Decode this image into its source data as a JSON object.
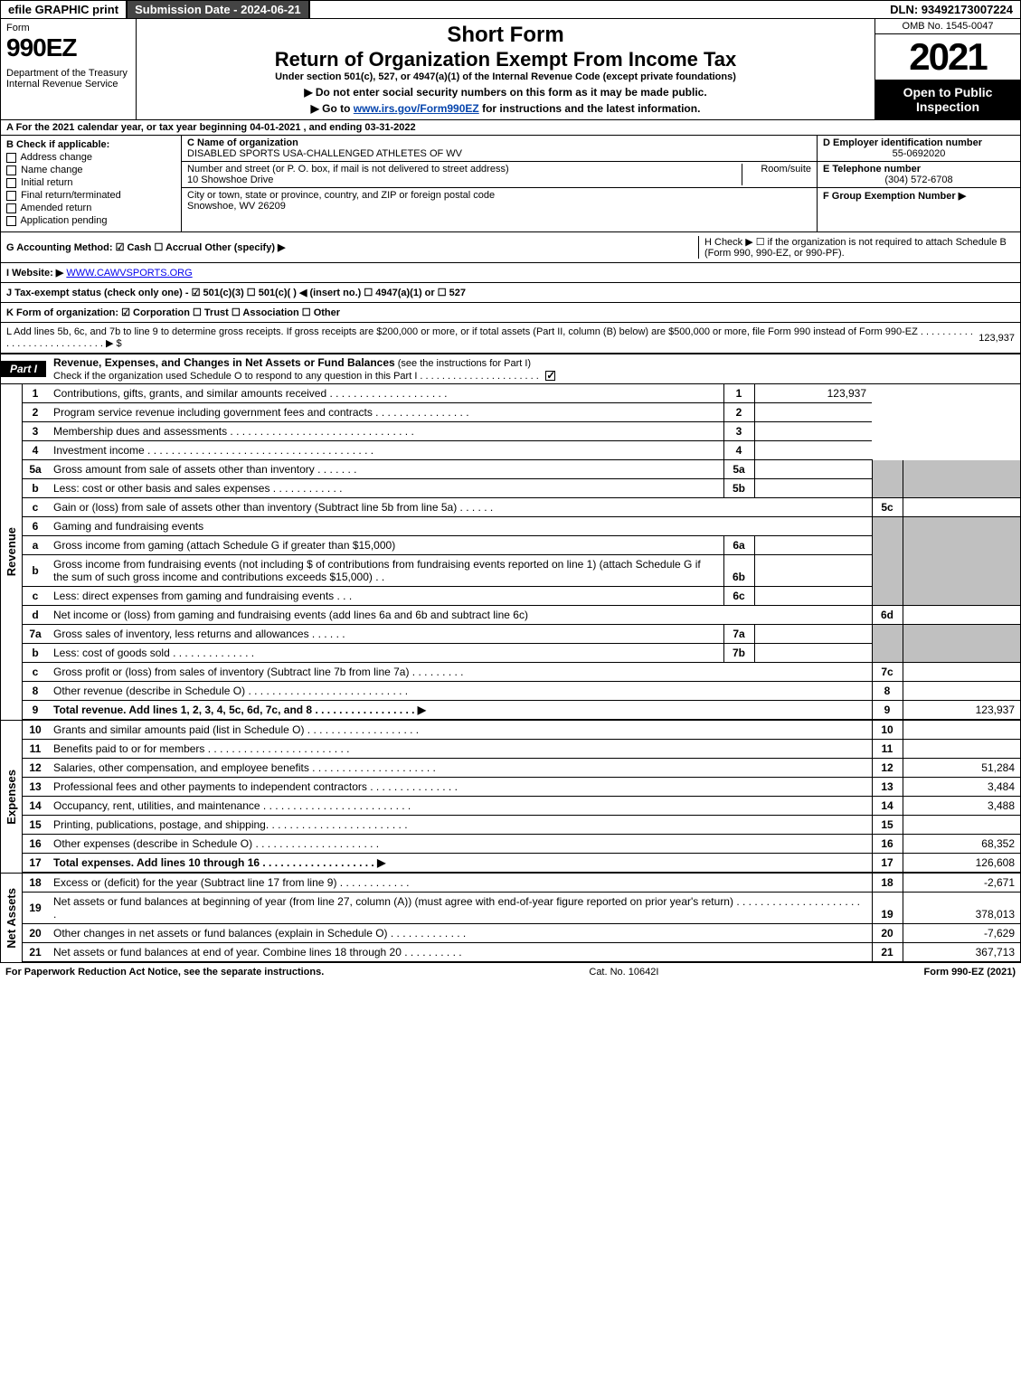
{
  "topbar": {
    "efile": "efile GRAPHIC print",
    "subdate": "Submission Date - 2024-06-21",
    "dln": "DLN: 93492173007224"
  },
  "header": {
    "form_label": "Form",
    "form_num": "990EZ",
    "dept": "Department of the Treasury\nInternal Revenue Service",
    "short": "Short Form",
    "return": "Return of Organization Exempt From Income Tax",
    "under": "Under section 501(c), 527, or 4947(a)(1) of the Internal Revenue Code (except private foundations)",
    "note": "▶ Do not enter social security numbers on this form as it may be made public.",
    "goto_pre": "▶ Go to ",
    "goto_link": "www.irs.gov/Form990EZ",
    "goto_post": " for instructions and the latest information.",
    "omb": "OMB No. 1545-0047",
    "year": "2021",
    "open": "Open to Public Inspection"
  },
  "A": "A  For the 2021 calendar year, or tax year beginning 04-01-2021 , and ending 03-31-2022",
  "B": {
    "head": "B  Check if applicable:",
    "items": [
      "Address change",
      "Name change",
      "Initial return",
      "Final return/terminated",
      "Amended return",
      "Application pending"
    ]
  },
  "C": {
    "name_lbl": "C Name of organization",
    "name": "DISABLED SPORTS USA-CHALLENGED ATHLETES OF WV",
    "street_lbl": "Number and street (or P. O. box, if mail is not delivered to street address)",
    "street": "10 Showshoe Drive",
    "room_lbl": "Room/suite",
    "city_lbl": "City or town, state or province, country, and ZIP or foreign postal code",
    "city": "Snowshoe, WV  26209"
  },
  "D": {
    "ein_lbl": "D Employer identification number",
    "ein": "55-0692020",
    "tel_lbl": "E Telephone number",
    "tel": "(304) 572-6708",
    "grp_lbl": "F Group Exemption Number  ▶"
  },
  "G": "G Accounting Method:   ☑ Cash   ☐ Accrual   Other (specify) ▶",
  "H": "H   Check ▶  ☐  if the organization is not required to attach Schedule B (Form 990, 990-EZ, or 990-PF).",
  "I": {
    "lbl": "I Website: ▶",
    "val": "WWW.CAWVSPORTS.ORG"
  },
  "J": "J Tax-exempt status (check only one) -  ☑ 501(c)(3)  ☐ 501(c)(  ) ◀ (insert no.)  ☐ 4947(a)(1) or  ☐ 527",
  "K": "K Form of organization:   ☑ Corporation   ☐ Trust   ☐ Association   ☐ Other",
  "L": {
    "text": "L Add lines 5b, 6c, and 7b to line 9 to determine gross receipts. If gross receipts are $200,000 or more, or if total assets (Part II, column (B) below) are $500,000 or more, file Form 990 instead of Form 990-EZ  .  .  .  .  .  .  .  .  .  .  .  .  .  .  .  .  .  .  .  .  .  .  .  .  .  .  .  .  ▶ $",
    "amt": "123,937"
  },
  "partI": {
    "tab": "Part I",
    "title": "Revenue, Expenses, and Changes in Net Assets or Fund Balances",
    "sub": " (see the instructions for Part I)",
    "check": "Check if the organization used Schedule O to respond to any question in this Part I  .  .  .  .  .  .  .  .  .  .  .  .  .  .  .  .  .  .  .  .  .  ."
  },
  "revenue_label": "Revenue",
  "expenses_label": "Expenses",
  "netassets_label": "Net Assets",
  "lines": {
    "l1": {
      "n": "1",
      "d": "Contributions, gifts, grants, and similar amounts received  .  .  .  .  .  .  .  .  .  .  .  .  .  .  .  .  .  .  .  .",
      "box": "1",
      "amt": "123,937"
    },
    "l2": {
      "n": "2",
      "d": "Program service revenue including government fees and contracts  .  .  .  .  .  .  .  .  .  .  .  .  .  .  .  .",
      "box": "2",
      "amt": ""
    },
    "l3": {
      "n": "3",
      "d": "Membership dues and assessments  .  .  .  .  .  .  .  .  .  .  .  .  .  .  .  .  .  .  .  .  .  .  .  .  .  .  .  .  .  .  .",
      "box": "3",
      "amt": ""
    },
    "l4": {
      "n": "4",
      "d": "Investment income  .  .  .  .  .  .  .  .  .  .  .  .  .  .  .  .  .  .  .  .  .  .  .  .  .  .  .  .  .  .  .  .  .  .  .  .  .  .",
      "box": "4",
      "amt": ""
    },
    "l5a": {
      "n": "5a",
      "d": "Gross amount from sale of assets other than inventory  .  .  .  .  .  .  .",
      "ibox": "5a"
    },
    "l5b": {
      "n": "b",
      "d": "Less: cost or other basis and sales expenses  .  .  .  .  .  .  .  .  .  .  .  .",
      "ibox": "5b"
    },
    "l5c": {
      "n": "c",
      "d": "Gain or (loss) from sale of assets other than inventory (Subtract line 5b from line 5a)  .  .  .  .  .  .",
      "box": "5c",
      "amt": ""
    },
    "l6": {
      "n": "6",
      "d": "Gaming and fundraising events"
    },
    "l6a": {
      "n": "a",
      "d": "Gross income from gaming (attach Schedule G if greater than $15,000)",
      "ibox": "6a"
    },
    "l6b": {
      "n": "b",
      "d": "Gross income from fundraising events (not including $                          of contributions from fundraising events reported on line 1) (attach Schedule G if the sum of such gross income and contributions exceeds $15,000)    .   .",
      "ibox": "6b"
    },
    "l6c": {
      "n": "c",
      "d": "Less: direct expenses from gaming and fundraising events     .   .   .",
      "ibox": "6c"
    },
    "l6d": {
      "n": "d",
      "d": "Net income or (loss) from gaming and fundraising events (add lines 6a and 6b and subtract line 6c)",
      "box": "6d",
      "amt": ""
    },
    "l7a": {
      "n": "7a",
      "d": "Gross sales of inventory, less returns and allowances  .  .  .  .  .  .",
      "ibox": "7a"
    },
    "l7b": {
      "n": "b",
      "d": "Less: cost of goods sold          .   .   .   .   .   .   .   .   .   .   .   .   .   .",
      "ibox": "7b"
    },
    "l7c": {
      "n": "c",
      "d": "Gross profit or (loss) from sales of inventory (Subtract line 7b from line 7a)  .  .  .  .  .  .  .  .  .",
      "box": "7c",
      "amt": ""
    },
    "l8": {
      "n": "8",
      "d": "Other revenue (describe in Schedule O)  .  .  .  .  .  .  .  .  .  .  .  .  .  .  .  .  .  .  .  .  .  .  .  .  .  .  .",
      "box": "8",
      "amt": ""
    },
    "l9": {
      "n": "9",
      "d": "Total revenue. Add lines 1, 2, 3, 4, 5c, 6d, 7c, and 8   .   .   .   .   .   .   .   .   .   .   .   .   .   .   .   .   .   ▶",
      "box": "9",
      "amt": "123,937"
    },
    "l10": {
      "n": "10",
      "d": "Grants and similar amounts paid (list in Schedule O)  .  .  .  .  .  .  .  .  .  .  .  .  .  .  .  .  .  .  .",
      "box": "10",
      "amt": ""
    },
    "l11": {
      "n": "11",
      "d": "Benefits paid to or for members      .   .   .   .   .   .   .   .   .   .   .   .   .   .   .   .   .   .   .   .   .   .   .   .",
      "box": "11",
      "amt": ""
    },
    "l12": {
      "n": "12",
      "d": "Salaries, other compensation, and employee benefits .  .  .  .  .  .  .  .  .  .  .  .  .  .  .  .  .  .  .  .  .",
      "box": "12",
      "amt": "51,284"
    },
    "l13": {
      "n": "13",
      "d": "Professional fees and other payments to independent contractors  .  .  .  .  .  .  .  .  .  .  .  .  .  .  .",
      "box": "13",
      "amt": "3,484"
    },
    "l14": {
      "n": "14",
      "d": "Occupancy, rent, utilities, and maintenance .  .  .  .  .  .  .  .  .  .  .  .  .  .  .  .  .  .  .  .  .  .  .  .  .",
      "box": "14",
      "amt": "3,488"
    },
    "l15": {
      "n": "15",
      "d": "Printing, publications, postage, and shipping.  .  .  .  .  .  .  .  .  .  .  .  .  .  .  .  .  .  .  .  .  .  .  .",
      "box": "15",
      "amt": ""
    },
    "l16": {
      "n": "16",
      "d": "Other expenses (describe in Schedule O)     .   .   .   .   .   .   .   .   .   .   .   .   .   .   .   .   .   .   .   .   .",
      "box": "16",
      "amt": "68,352"
    },
    "l17": {
      "n": "17",
      "d": "Total expenses. Add lines 10 through 16      .   .   .   .   .   .   .   .   .   .   .   .   .   .   .   .   .   .   .   ▶",
      "box": "17",
      "amt": "126,608"
    },
    "l18": {
      "n": "18",
      "d": "Excess or (deficit) for the year (Subtract line 17 from line 9)        .   .   .   .   .   .   .   .   .   .   .   .",
      "box": "18",
      "amt": "-2,671"
    },
    "l19": {
      "n": "19",
      "d": "Net assets or fund balances at beginning of year (from line 27, column (A)) (must agree with end-of-year figure reported on prior year's return) .  .  .  .  .  .  .  .  .  .  .  .  .  .  .  .  .  .  .  .  .  .",
      "box": "19",
      "amt": "378,013"
    },
    "l20": {
      "n": "20",
      "d": "Other changes in net assets or fund balances (explain in Schedule O) .  .  .  .  .  .  .  .  .  .  .  .  .",
      "box": "20",
      "amt": "-7,629"
    },
    "l21": {
      "n": "21",
      "d": "Net assets or fund balances at end of year. Combine lines 18 through 20  .  .  .  .  .  .  .  .  .  .",
      "box": "21",
      "amt": "367,713"
    }
  },
  "footer": {
    "left": "For Paperwork Reduction Act Notice, see the separate instructions.",
    "mid": "Cat. No. 10642I",
    "right": "Form 990-EZ (2021)"
  }
}
